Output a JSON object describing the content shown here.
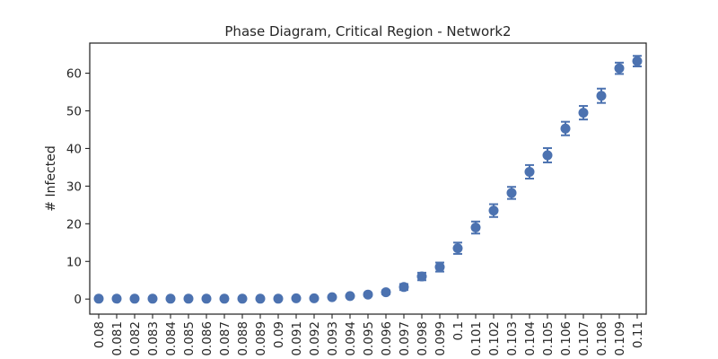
{
  "chart_data": {
    "type": "scatter",
    "title": "Phase Diagram, Critical Region - Network2",
    "xlabel": "",
    "ylabel": "# Infected",
    "x": [
      "0.08",
      "0.081",
      "0.082",
      "0.083",
      "0.084",
      "0.085",
      "0.086",
      "0.087",
      "0.088",
      "0.089",
      "0.09",
      "0.091",
      "0.092",
      "0.093",
      "0.094",
      "0.095",
      "0.096",
      "0.097",
      "0.098",
      "0.099",
      "0.1",
      "0.101",
      "0.102",
      "0.103",
      "0.104",
      "0.105",
      "0.106",
      "0.107",
      "0.108",
      "0.109",
      "0.11"
    ],
    "y": [
      0.1,
      0.1,
      0.1,
      0.1,
      0.1,
      0.1,
      0.1,
      0.1,
      0.1,
      0.1,
      0.1,
      0.2,
      0.2,
      0.5,
      0.8,
      1.2,
      1.8,
      3.2,
      6.0,
      8.5,
      13.5,
      19.0,
      23.5,
      28.2,
      33.8,
      38.2,
      45.3,
      49.5,
      54.0,
      61.3,
      63.2
    ],
    "yerr": [
      0.1,
      0.1,
      0.1,
      0.1,
      0.1,
      0.1,
      0.1,
      0.1,
      0.1,
      0.1,
      0.1,
      0.1,
      0.1,
      0.2,
      0.3,
      0.4,
      0.5,
      0.8,
      1.0,
      1.2,
      1.5,
      1.6,
      1.7,
      1.6,
      1.8,
      1.9,
      1.8,
      1.8,
      1.9,
      1.5,
      1.4
    ],
    "ylim": [
      -4,
      68
    ],
    "yticks": [
      0,
      10,
      20,
      30,
      40,
      50,
      60
    ],
    "grid": false,
    "color": "#4c72b0"
  }
}
